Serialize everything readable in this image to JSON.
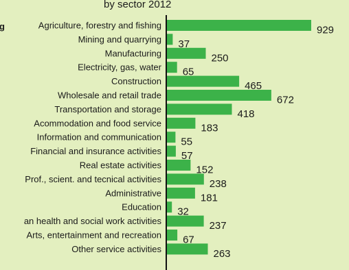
{
  "chart_data": {
    "type": "bar",
    "orientation": "horizontal",
    "title": "by sector 2012",
    "categories": [
      "Agriculture, forestry and fishing",
      "Mining and quarrying",
      "Manufacturing",
      "Electricity, gas, water",
      "Construction",
      "Wholesale and retail trade",
      "Transportation and storage",
      "Acommodation and food service",
      "Information and communication",
      "Financial and insurance activities",
      "Real estate activities",
      "Prof., scient. and tecnical activities",
      "Administrative",
      "Education",
      "an health and social work activities",
      "Arts, entertainment and recreation",
      "Other service activities"
    ],
    "values": [
      929,
      37,
      250,
      65,
      465,
      672,
      418,
      183,
      55,
      57,
      152,
      238,
      181,
      32,
      237,
      67,
      263
    ],
    "xlim": [
      0,
      1000
    ],
    "grid": false,
    "left_edge_fragment": "g",
    "colors": {
      "background": "#e3efbf",
      "bar": "#3cb249",
      "text": "#1a1a1a",
      "axis": "#111111"
    }
  }
}
